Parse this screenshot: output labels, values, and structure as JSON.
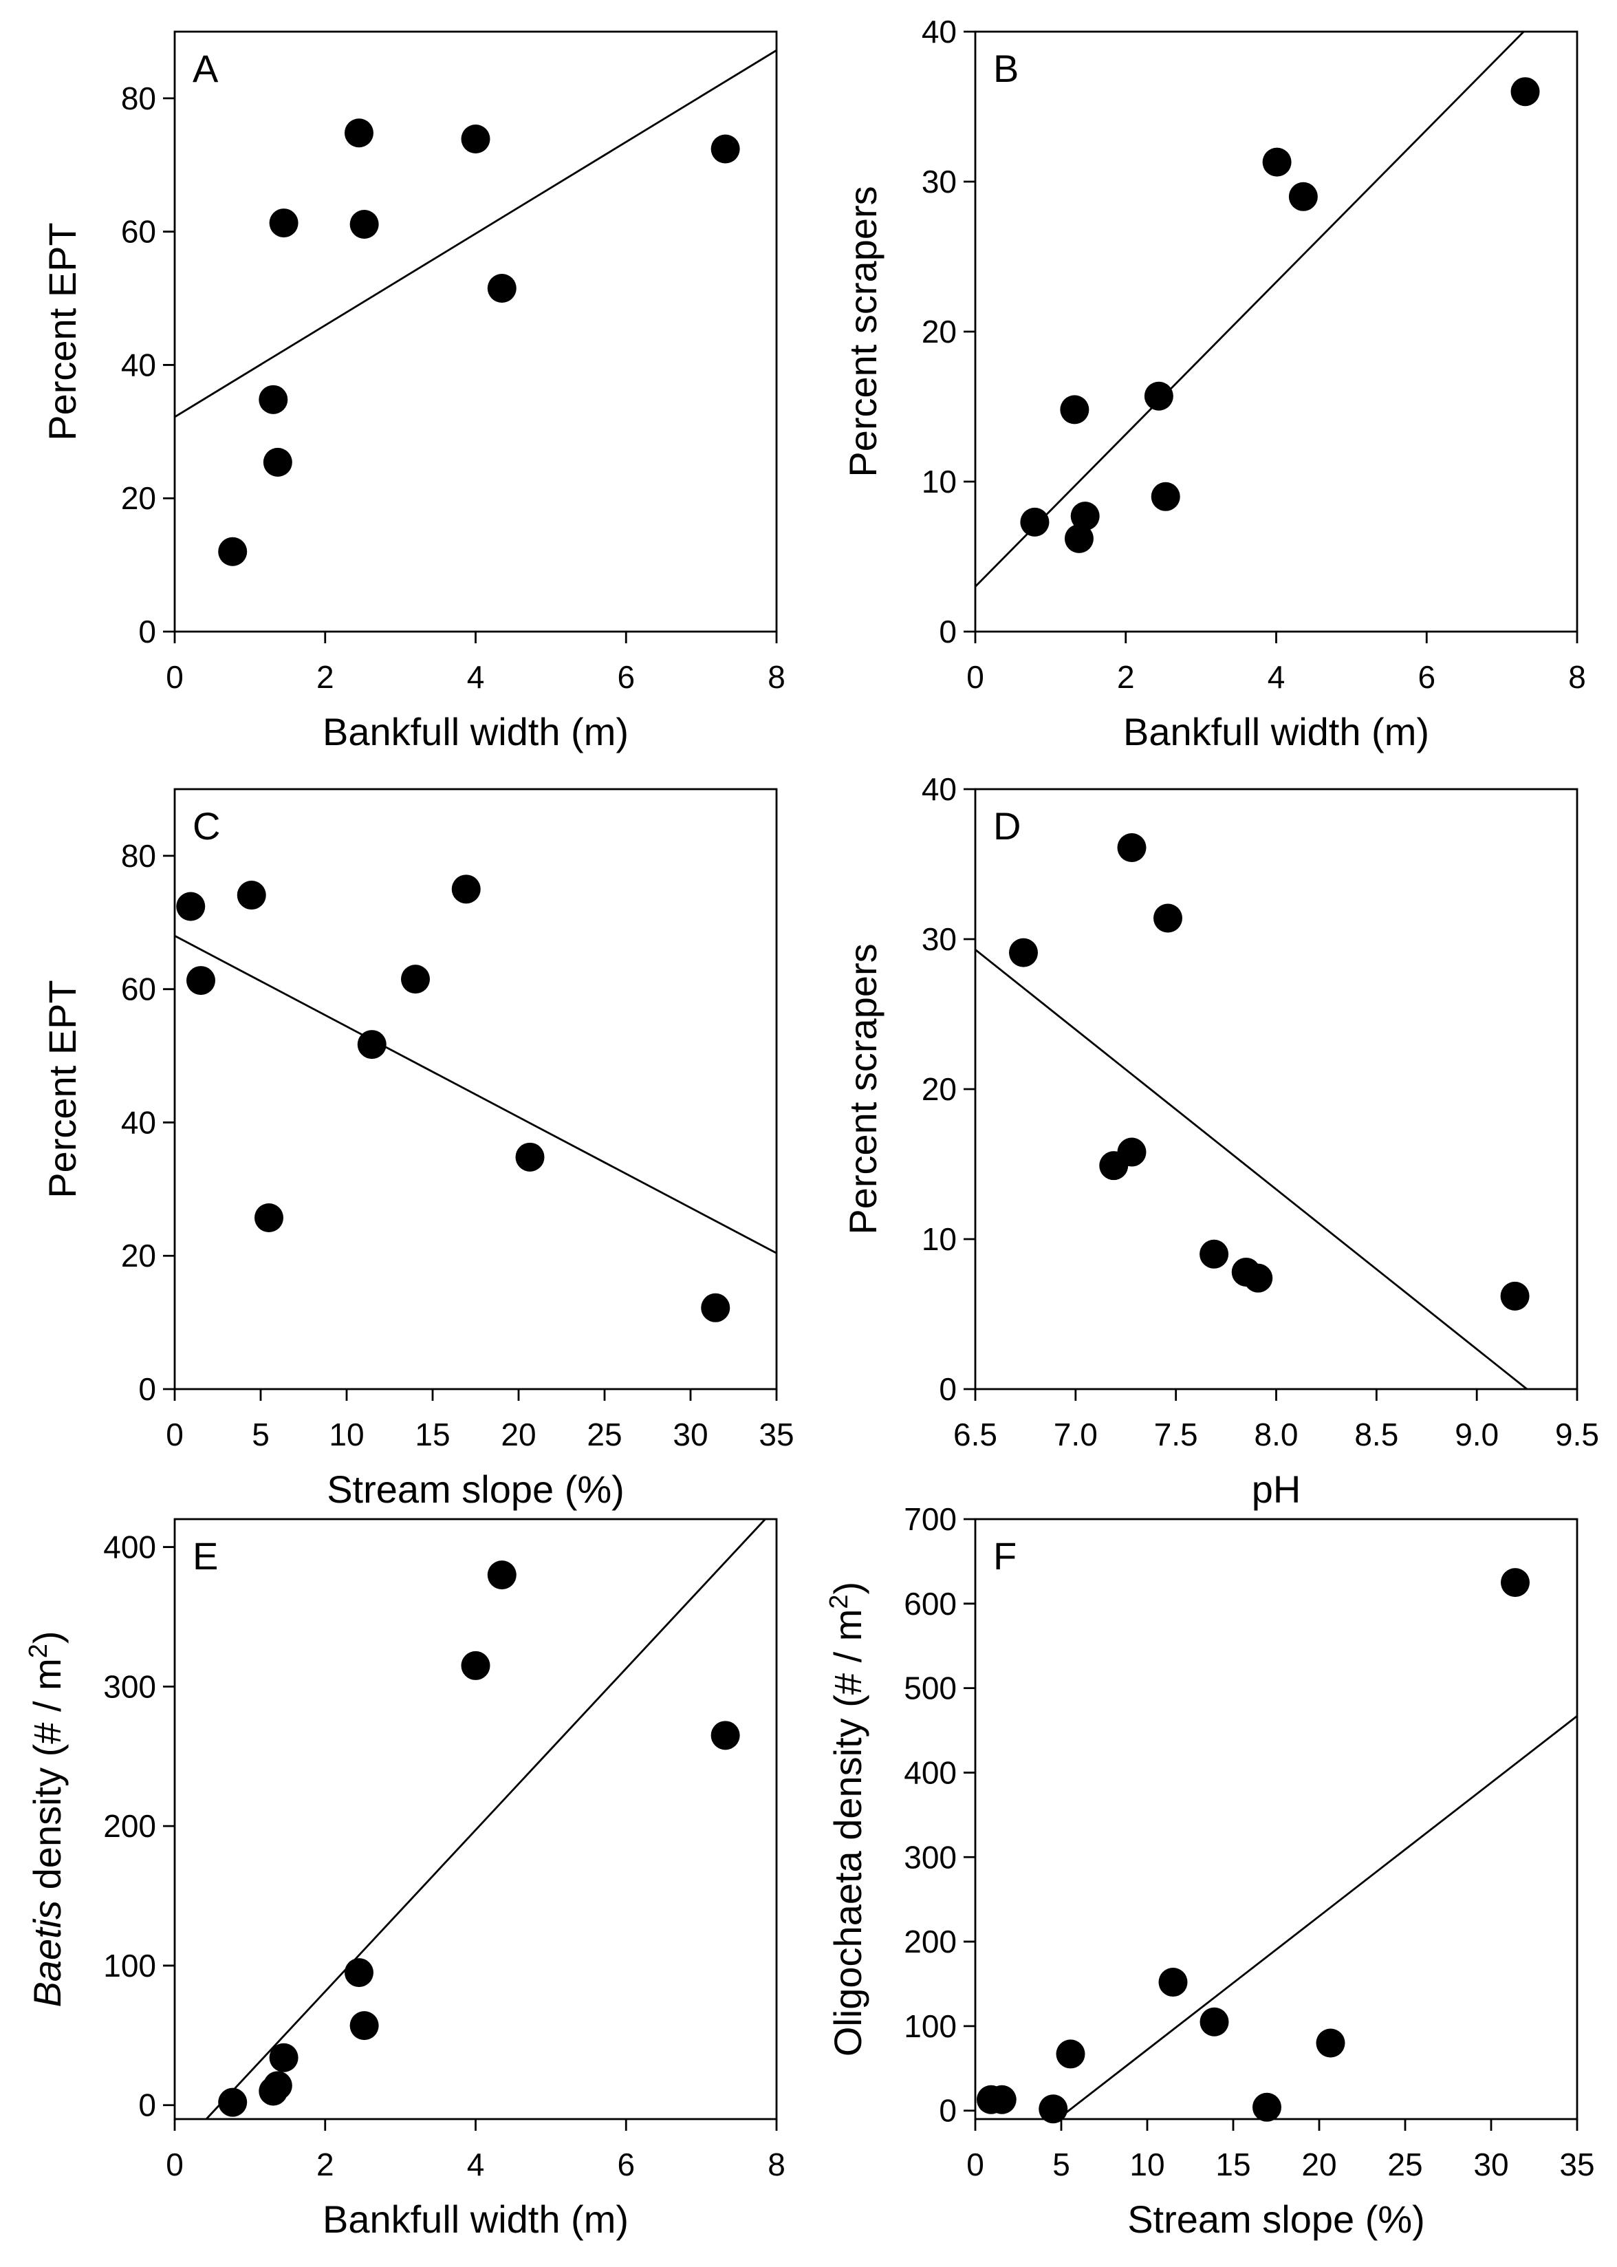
{
  "colors": {
    "marker": "#000000",
    "line": "#000000",
    "axis": "#000000",
    "background": "#ffffff"
  },
  "chart_data": [
    {
      "panel": "A",
      "type": "scatter",
      "xlabel": "Bankfull width (m)",
      "ylabel_parts": [
        {
          "text": "Percent EPT"
        }
      ],
      "xlim": [
        0,
        8
      ],
      "ylim": [
        0,
        90
      ],
      "xticks": [
        "0",
        "2",
        "4",
        "6",
        "8"
      ],
      "yticks": [
        "0",
        "20",
        "40",
        "60",
        "80"
      ],
      "points": {
        "x": [
          0.77,
          1.31,
          1.37,
          1.45,
          2.45,
          2.52,
          4.0,
          4.35,
          7.32
        ],
        "y": [
          12.0,
          34.8,
          25.4,
          61.3,
          74.8,
          61.1,
          73.9,
          51.5,
          72.4
        ]
      },
      "fit_line": {
        "x": [
          0,
          8
        ],
        "y": [
          32.2,
          87.2
        ]
      }
    },
    {
      "panel": "B",
      "type": "scatter",
      "xlabel": "Bankfull width (m)",
      "ylabel_parts": [
        {
          "text": "Percent scrapers"
        }
      ],
      "xlim": [
        0,
        8
      ],
      "ylim": [
        0,
        40
      ],
      "xticks": [
        "0",
        "2",
        "4",
        "6",
        "8"
      ],
      "yticks": [
        "0",
        "10",
        "20",
        "30",
        "40"
      ],
      "points": {
        "x": [
          0.79,
          1.32,
          1.38,
          1.46,
          2.44,
          2.53,
          4.01,
          4.36,
          7.31
        ],
        "y": [
          7.3,
          14.8,
          6.2,
          7.7,
          15.7,
          9.0,
          31.3,
          29.0,
          36.0
        ]
      },
      "fit_line": {
        "x": [
          0,
          7.29
        ],
        "y": [
          3.0,
          40.0
        ]
      }
    },
    {
      "panel": "C",
      "type": "scatter",
      "xlabel": "Stream slope (%)",
      "ylabel_parts": [
        {
          "text": "Percent EPT"
        }
      ],
      "xlim": [
        0,
        35
      ],
      "ylim": [
        0,
        90
      ],
      "xticks": [
        "0",
        "5",
        "10",
        "15",
        "20",
        "25",
        "30",
        "35"
      ],
      "yticks": [
        "0",
        "20",
        "40",
        "60",
        "80"
      ],
      "points": {
        "x": [
          0.93,
          1.52,
          4.47,
          5.48,
          11.47,
          14.0,
          16.95,
          20.66,
          31.45
        ],
        "y": [
          72.4,
          61.3,
          74.1,
          25.7,
          51.7,
          61.5,
          75.0,
          34.8,
          12.2
        ]
      },
      "fit_line": {
        "x": [
          0,
          35
        ],
        "y": [
          68.0,
          20.4
        ]
      }
    },
    {
      "panel": "D",
      "type": "scatter",
      "xlabel": "pH",
      "ylabel_parts": [
        {
          "text": "Percent scrapers"
        }
      ],
      "xlim": [
        6.5,
        9.5
      ],
      "ylim": [
        0,
        40
      ],
      "xticks": [
        "6.5",
        "7.0",
        "7.5",
        "8.0",
        "8.5",
        "9.0",
        "9.5"
      ],
      "yticks": [
        "0",
        "10",
        "20",
        "30",
        "40"
      ],
      "points": {
        "x": [
          6.74,
          7.19,
          7.28,
          7.28,
          7.46,
          7.69,
          7.85,
          7.91,
          9.19
        ],
        "y": [
          29.1,
          14.9,
          36.1,
          15.8,
          31.4,
          9.0,
          7.8,
          7.4,
          6.2
        ]
      },
      "fit_line": {
        "x": [
          6.5,
          9.25
        ],
        "y": [
          29.3,
          0.0
        ]
      }
    },
    {
      "panel": "E",
      "type": "scatter",
      "xlabel": "Bankfull width (m)",
      "ylabel_parts": [
        {
          "text": "Baetis",
          "italic": true
        },
        {
          "text": " density (# / m"
        },
        {
          "text": "2",
          "superscript": true
        },
        {
          "text": ")"
        }
      ],
      "xlim": [
        0,
        8
      ],
      "ylim": [
        -10,
        420
      ],
      "xticks": [
        "0",
        "2",
        "4",
        "6",
        "8"
      ],
      "yticks": [
        "0",
        "100",
        "200",
        "300",
        "400"
      ],
      "points": {
        "x": [
          0.77,
          1.31,
          1.37,
          1.45,
          2.45,
          2.52,
          4.0,
          4.35,
          7.32
        ],
        "y": [
          2,
          10,
          14,
          34,
          95,
          57,
          315,
          380,
          265
        ]
      },
      "fit_line": {
        "x": [
          0.42,
          7.85
        ],
        "y": [
          -10,
          420
        ]
      }
    },
    {
      "panel": "F",
      "type": "scatter",
      "xlabel": "Stream slope (%)",
      "ylabel_parts": [
        {
          "text": "Oligochaeta density (# / m"
        },
        {
          "text": "2",
          "superscript": true
        },
        {
          "text": ")"
        }
      ],
      "xlim": [
        0,
        35
      ],
      "ylim": [
        -10,
        700
      ],
      "xticks": [
        "0",
        "5",
        "10",
        "15",
        "20",
        "25",
        "30",
        "35"
      ],
      "yticks": [
        "0",
        "100",
        "200",
        "300",
        "400",
        "500",
        "600",
        "700"
      ],
      "points": {
        "x": [
          0.92,
          1.55,
          4.53,
          5.54,
          11.5,
          13.9,
          16.96,
          20.66,
          31.4
        ],
        "y": [
          13,
          13,
          2,
          67,
          152,
          105,
          4,
          80,
          625
        ]
      },
      "fit_line": {
        "x": [
          4.8,
          35
        ],
        "y": [
          -10,
          467
        ]
      }
    }
  ]
}
